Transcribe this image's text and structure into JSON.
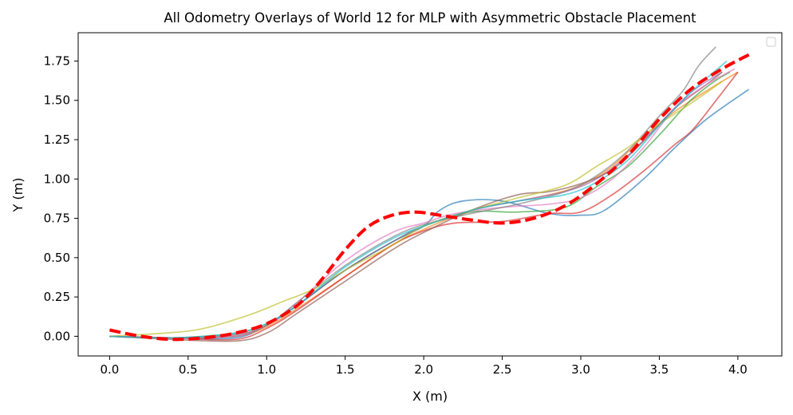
{
  "chart_data": {
    "type": "line",
    "title": "All Odometry Overlays of World 12 for MLP with Asymmetric Obstacle Placement",
    "xlabel": "X (m)",
    "ylabel": "Y (m)",
    "xlim": [
      -0.2,
      4.28
    ],
    "ylim": [
      -0.125,
      1.93
    ],
    "xticks": [
      0.0,
      0.5,
      1.0,
      1.5,
      2.0,
      2.5,
      3.0,
      3.5,
      4.0
    ],
    "xtick_labels": [
      "0.0",
      "0.5",
      "1.0",
      "1.5",
      "2.0",
      "2.5",
      "3.0",
      "3.5",
      "4.0"
    ],
    "yticks": [
      0.0,
      0.25,
      0.5,
      0.75,
      1.0,
      1.25,
      1.5,
      1.75
    ],
    "ytick_labels": [
      "0.00",
      "0.25",
      "0.50",
      "0.75",
      "1.00",
      "1.25",
      "1.50",
      "1.75"
    ],
    "grid": false,
    "legend": {
      "position": "top-right",
      "entries": []
    },
    "series": [
      {
        "color": "#1f77b4",
        "x": [
          0.0,
          0.4,
          0.8,
          1.0,
          1.2,
          1.5,
          1.8,
          2.0,
          2.1,
          2.25,
          2.5,
          2.8,
          3.0,
          3.15,
          3.4,
          3.6,
          3.8,
          4.07
        ],
        "y": [
          0.0,
          -0.01,
          -0.01,
          0.07,
          0.2,
          0.42,
          0.6,
          0.7,
          0.8,
          0.86,
          0.86,
          0.78,
          0.77,
          0.8,
          1.0,
          1.2,
          1.38,
          1.57
        ]
      },
      {
        "color": "#ff7f0e",
        "x": [
          0.0,
          0.4,
          0.8,
          1.0,
          1.2,
          1.5,
          1.8,
          2.0,
          2.3,
          2.6,
          2.8,
          3.0,
          3.2,
          3.4,
          3.6,
          3.8,
          4.0
        ],
        "y": [
          0.0,
          -0.01,
          0.0,
          0.06,
          0.18,
          0.38,
          0.58,
          0.68,
          0.8,
          0.86,
          0.9,
          0.96,
          1.08,
          1.27,
          1.43,
          1.56,
          1.68
        ]
      },
      {
        "color": "#2ca02c",
        "x": [
          0.0,
          0.4,
          0.8,
          1.0,
          1.2,
          1.5,
          1.8,
          2.0,
          2.3,
          2.6,
          2.9,
          3.1,
          3.3,
          3.5,
          3.7,
          3.85,
          3.95
        ],
        "y": [
          0.0,
          -0.01,
          0.02,
          0.08,
          0.2,
          0.42,
          0.6,
          0.7,
          0.79,
          0.79,
          0.82,
          0.95,
          1.08,
          1.28,
          1.5,
          1.62,
          1.68
        ]
      },
      {
        "color": "#d62728",
        "x": [
          0.0,
          0.4,
          0.8,
          1.0,
          1.2,
          1.5,
          1.8,
          2.0,
          2.2,
          2.5,
          2.8,
          3.0,
          3.2,
          3.4,
          3.6,
          3.7,
          3.8,
          4.0
        ],
        "y": [
          0.0,
          -0.01,
          -0.02,
          0.05,
          0.17,
          0.38,
          0.58,
          0.67,
          0.72,
          0.73,
          0.78,
          0.79,
          0.9,
          1.05,
          1.22,
          1.3,
          1.42,
          1.68
        ]
      },
      {
        "color": "#9467bd",
        "x": [
          0.0,
          0.4,
          0.8,
          1.0,
          1.2,
          1.5,
          1.8,
          2.0,
          2.3,
          2.6,
          2.9,
          3.1,
          3.3,
          3.5,
          3.7,
          3.9
        ],
        "y": [
          0.0,
          -0.01,
          0.0,
          0.07,
          0.2,
          0.42,
          0.6,
          0.7,
          0.8,
          0.86,
          0.92,
          1.0,
          1.15,
          1.35,
          1.55,
          1.68
        ]
      },
      {
        "color": "#8c564b",
        "x": [
          0.0,
          0.4,
          0.8,
          1.0,
          1.2,
          1.5,
          1.8,
          2.0,
          2.3,
          2.6,
          2.8,
          3.0,
          3.2,
          3.4,
          3.6,
          3.8,
          3.9
        ],
        "y": [
          0.0,
          -0.02,
          -0.03,
          0.02,
          0.15,
          0.35,
          0.55,
          0.66,
          0.8,
          0.9,
          0.92,
          0.97,
          1.06,
          1.24,
          1.45,
          1.6,
          1.68
        ]
      },
      {
        "color": "#e377c2",
        "x": [
          0.0,
          0.4,
          0.8,
          1.0,
          1.2,
          1.5,
          1.8,
          2.0,
          2.2,
          2.5,
          2.8,
          3.0,
          3.2,
          3.4,
          3.6,
          3.8,
          3.98
        ],
        "y": [
          0.0,
          -0.01,
          0.01,
          0.07,
          0.22,
          0.48,
          0.66,
          0.72,
          0.78,
          0.82,
          0.84,
          0.88,
          1.0,
          1.2,
          1.45,
          1.6,
          1.7
        ]
      },
      {
        "color": "#7f7f7f",
        "x": [
          0.0,
          0.4,
          0.8,
          1.0,
          1.2,
          1.5,
          1.8,
          2.0,
          2.3,
          2.6,
          2.9,
          3.1,
          3.3,
          3.5,
          3.65,
          3.75,
          3.86
        ],
        "y": [
          0.0,
          -0.01,
          0.01,
          0.07,
          0.22,
          0.45,
          0.63,
          0.71,
          0.78,
          0.84,
          0.92,
          1.02,
          1.18,
          1.4,
          1.56,
          1.72,
          1.84
        ]
      },
      {
        "color": "#bcbd22",
        "x": [
          0.0,
          0.35,
          0.6,
          0.9,
          1.1,
          1.3,
          1.5,
          1.8,
          2.0,
          2.3,
          2.6,
          2.9,
          3.1,
          3.3,
          3.5,
          3.7,
          3.9
        ],
        "y": [
          0.0,
          0.02,
          0.05,
          0.14,
          0.22,
          0.3,
          0.42,
          0.58,
          0.7,
          0.8,
          0.88,
          0.96,
          1.08,
          1.2,
          1.35,
          1.48,
          1.62
        ]
      },
      {
        "color": "#17becf",
        "x": [
          0.0,
          0.4,
          0.8,
          1.0,
          1.2,
          1.5,
          1.8,
          2.0,
          2.3,
          2.6,
          2.9,
          3.1,
          3.3,
          3.5,
          3.7,
          3.93
        ],
        "y": [
          0.0,
          -0.01,
          0.02,
          0.08,
          0.2,
          0.44,
          0.62,
          0.7,
          0.8,
          0.86,
          0.9,
          0.98,
          1.12,
          1.34,
          1.55,
          1.75
        ]
      }
    ],
    "reference_path": {
      "color": "#ff0000",
      "style": "dashed",
      "x": [
        0.0,
        0.2,
        0.4,
        0.6,
        0.8,
        1.0,
        1.2,
        1.35,
        1.5,
        1.65,
        1.8,
        1.95,
        2.1,
        2.3,
        2.5,
        2.7,
        2.9,
        3.1,
        3.3,
        3.5,
        3.7,
        3.9,
        4.07
      ],
      "y": [
        0.04,
        0.0,
        -0.02,
        -0.01,
        0.02,
        0.08,
        0.2,
        0.36,
        0.55,
        0.7,
        0.77,
        0.79,
        0.77,
        0.74,
        0.72,
        0.75,
        0.83,
        0.97,
        1.15,
        1.38,
        1.57,
        1.7,
        1.79
      ]
    }
  }
}
